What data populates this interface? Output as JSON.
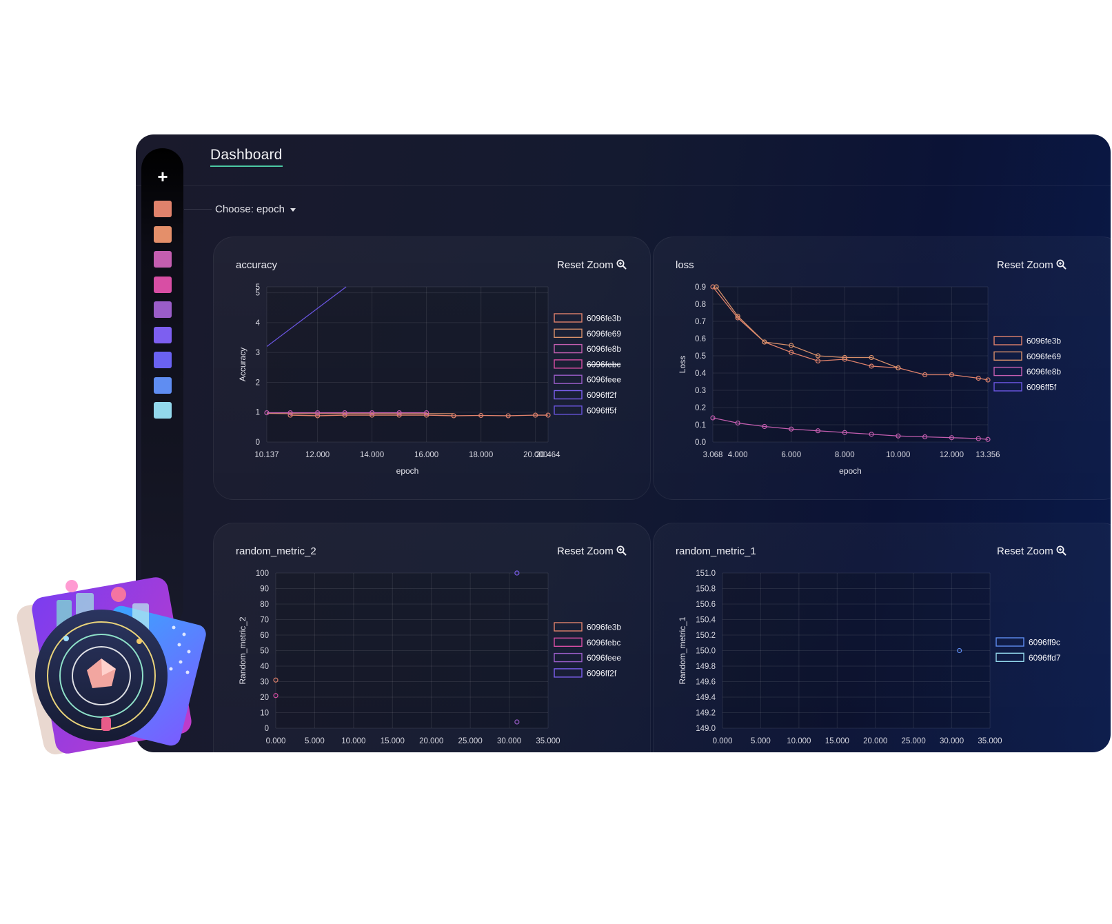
{
  "header": {
    "title": "Dashboard"
  },
  "sidebar": {
    "add_icon": "plus-icon",
    "swatches": [
      "#e0826c",
      "#e48f6a",
      "#c45eb0",
      "#d84ea4",
      "#9a5dc8",
      "#7d5ff0",
      "#6a62f2",
      "#5f8df2",
      "#93d8ec"
    ]
  },
  "selector": {
    "label": "Choose: epoch"
  },
  "reset_label": "Reset Zoom",
  "charts": [
    {
      "title": "accuracy",
      "chart_data": {
        "type": "line",
        "xlabel": "epoch",
        "ylabel": "Accuracy",
        "xlim": [
          10.137,
          20.464
        ],
        "ylim": [
          0,
          5.2
        ],
        "xticks": [
          "10.137",
          "12.000",
          "14.000",
          "16.000",
          "18.000",
          "20.000",
          "20.464"
        ],
        "yticks": [
          "0",
          "1",
          "2",
          "3",
          "4",
          "5",
          "5"
        ],
        "legend": [
          "6096fe3b",
          "6096fe69",
          "6096fe8b",
          "6096febc",
          "6096feee",
          "6096ff2f",
          "6096ff5f"
        ],
        "legend_struck": [
          false,
          false,
          false,
          true,
          false,
          false,
          false
        ],
        "series": [
          {
            "name": "6096fe3b",
            "color": "#e0826c",
            "x": [
              11,
              12,
              13,
              14,
              15,
              16,
              17,
              18,
              19,
              20,
              20.464
            ],
            "y": [
              0.9,
              0.88,
              0.9,
              0.9,
              0.9,
              0.9,
              0.88,
              0.89,
              0.88,
              0.9,
              0.9
            ],
            "markers": true
          },
          {
            "name": "6096fe69",
            "color": "#d8906a",
            "x": [
              10.137,
              11,
              12,
              13,
              14,
              15,
              16,
              17
            ],
            "y": [
              0.96,
              0.95,
              0.95,
              0.95,
              0.95,
              0.95,
              0.95,
              0.95
            ],
            "markers": false
          },
          {
            "name": "6096fe8b",
            "color": "#c45eb0",
            "x": [
              10.137,
              11,
              12,
              13,
              14,
              15,
              16
            ],
            "y": [
              0.98,
              0.98,
              0.98,
              0.98,
              0.98,
              0.98,
              0.98
            ],
            "markers": true
          },
          {
            "name": "6096ff5f",
            "color": "#6a55e0",
            "x": [
              10.137,
              13.05
            ],
            "y": [
              3.2,
              5.2
            ],
            "markers": false
          }
        ]
      }
    },
    {
      "title": "loss",
      "chart_data": {
        "type": "line",
        "xlabel": "epoch",
        "ylabel": "Loss",
        "xlim": [
          3.068,
          13.356
        ],
        "ylim": [
          0,
          0.9
        ],
        "xticks": [
          "3.068",
          "4.000",
          "6.000",
          "8.000",
          "10.000",
          "12.000",
          "13.356"
        ],
        "yticks": [
          "0.0",
          "0.1",
          "0.2",
          "0.3",
          "0.4",
          "0.5",
          "0.6",
          "0.7",
          "0.8",
          "0.9"
        ],
        "legend": [
          "6096fe3b",
          "6096fe69",
          "6096fe8b",
          "6096ff5f"
        ],
        "legend_struck": [
          false,
          false,
          false,
          false
        ],
        "series": [
          {
            "name": "6096fe3b",
            "color": "#e0826c",
            "x": [
              3.068,
              4,
              5,
              6,
              7,
              8,
              9,
              10,
              11,
              12,
              13,
              13.356
            ],
            "y": [
              0.9,
              0.72,
              0.58,
              0.52,
              0.47,
              0.48,
              0.44,
              0.43,
              0.39,
              0.39,
              0.37,
              0.36
            ],
            "markers": true
          },
          {
            "name": "6096fe69",
            "color": "#d8906a",
            "x": [
              3.2,
              4,
              5,
              6,
              7,
              8,
              9,
              10
            ],
            "y": [
              0.9,
              0.73,
              0.58,
              0.56,
              0.5,
              0.49,
              0.49,
              0.43
            ],
            "markers": true
          },
          {
            "name": "6096fe8b",
            "color": "#c45eb0",
            "x": [
              3.068,
              4,
              5,
              6,
              7,
              8,
              9,
              10,
              11,
              12,
              13,
              13.356
            ],
            "y": [
              0.14,
              0.11,
              0.09,
              0.075,
              0.065,
              0.055,
              0.045,
              0.035,
              0.03,
              0.025,
              0.02,
              0.015
            ],
            "markers": true
          }
        ]
      }
    },
    {
      "title": "random_metric_2",
      "chart_data": {
        "type": "scatter",
        "xlabel": "",
        "ylabel": "Random_metric_2",
        "xlim": [
          0,
          35
        ],
        "ylim": [
          0,
          100
        ],
        "xticks": [
          "0.000",
          "5.000",
          "10.000",
          "15.000",
          "20.000",
          "25.000",
          "30.000",
          "35.000"
        ],
        "yticks": [
          "0",
          "10",
          "20",
          "30",
          "40",
          "50",
          "60",
          "70",
          "80",
          "90",
          "100"
        ],
        "legend": [
          "6096fe3b",
          "6096febc",
          "6096feee",
          "6096ff2f"
        ],
        "legend_struck": [
          false,
          false,
          false,
          false
        ],
        "series": [
          {
            "name": "6096fe3b",
            "color": "#e0826c",
            "x": [
              0
            ],
            "y": [
              31
            ],
            "markers": true
          },
          {
            "name": "6096febc",
            "color": "#d84ea4",
            "x": [
              0
            ],
            "y": [
              21
            ],
            "markers": true
          },
          {
            "name": "6096feee",
            "color": "#9a5dc8",
            "x": [
              31
            ],
            "y": [
              4
            ],
            "markers": true
          },
          {
            "name": "6096ff2f",
            "color": "#7d5ff0",
            "x": [
              31
            ],
            "y": [
              100
            ],
            "markers": true
          }
        ]
      }
    },
    {
      "title": "random_metric_1",
      "chart_data": {
        "type": "scatter",
        "xlabel": "",
        "ylabel": "Random_metric_1",
        "xlim": [
          0,
          35
        ],
        "ylim": [
          149.0,
          151.0
        ],
        "xticks": [
          "0.000",
          "5.000",
          "10.000",
          "15.000",
          "20.000",
          "25.000",
          "30.000",
          "35.000"
        ],
        "yticks": [
          "149.0",
          "149.2",
          "149.4",
          "149.6",
          "149.8",
          "150.0",
          "150.2",
          "150.4",
          "150.6",
          "150.8",
          "151.0"
        ],
        "legend": [
          "6096ff9c",
          "6096ffd7"
        ],
        "legend_struck": [
          false,
          false
        ],
        "series": [
          {
            "name": "6096ff9c",
            "color": "#5f8df2",
            "x": [
              31
            ],
            "y": [
              150.0
            ],
            "markers": true
          },
          {
            "name": "6096ffd7",
            "color": "#93d8ec",
            "x": [],
            "y": [],
            "markers": true
          }
        ]
      }
    }
  ]
}
